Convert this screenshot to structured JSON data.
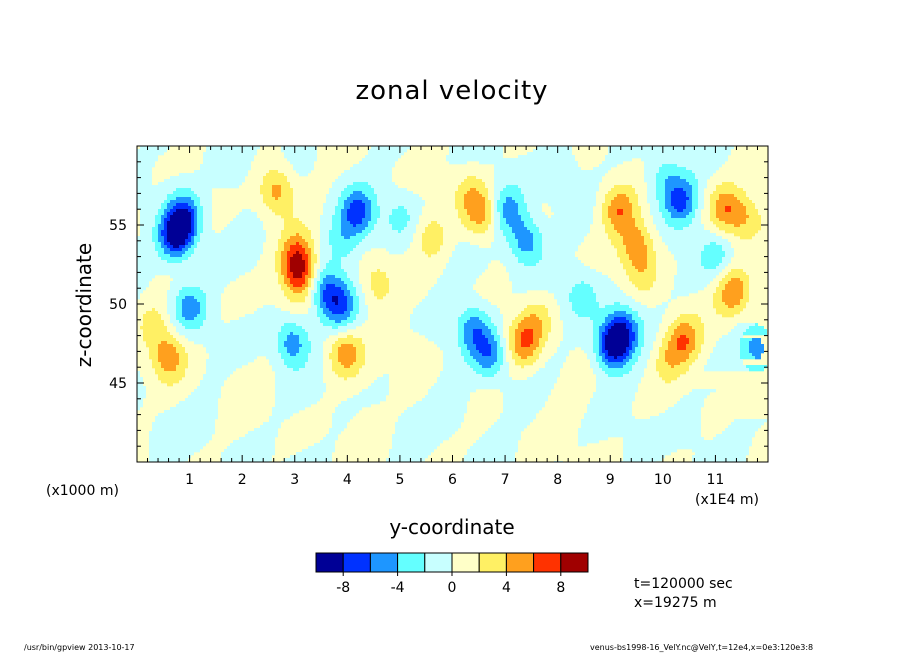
{
  "chart_data": {
    "type": "heatmap",
    "title": "zonal velocity",
    "xlabel": "y-coordinate",
    "ylabel": "z-coordinate",
    "x_unit_left": "(x1000 m)",
    "x_unit_right": "(x1E4 m)",
    "xlim": [
      0,
      12
    ],
    "ylim": [
      40,
      60
    ],
    "x_tick_labels": [
      "1",
      "2",
      "3",
      "4",
      "5",
      "6",
      "7",
      "8",
      "9",
      "10",
      "11"
    ],
    "x_ticks": [
      1,
      2,
      3,
      4,
      5,
      6,
      7,
      8,
      9,
      10,
      11
    ],
    "y_tick_labels": [
      "45",
      "50",
      "55"
    ],
    "y_ticks": [
      45,
      50,
      55
    ],
    "colorbar": {
      "colors": [
        "#000096",
        "#0032ff",
        "#1e96ff",
        "#64ffff",
        "#c8ffff",
        "#ffffc8",
        "#fff064",
        "#ffa01e",
        "#ff3200",
        "#a00000"
      ],
      "tick_labels": [
        "-8",
        "-4",
        "0",
        "4",
        "8"
      ],
      "levels": [
        -10,
        -8,
        -6,
        -4,
        -2,
        0,
        2,
        4,
        6,
        8,
        10
      ]
    },
    "features": [
      {
        "y": 0.75,
        "z": 54.3,
        "v": -9
      },
      {
        "y": 0.9,
        "z": 55.6,
        "v": -6
      },
      {
        "y": 1.0,
        "z": 49.8,
        "v": -5
      },
      {
        "y": 0.6,
        "z": 46.7,
        "v": 5
      },
      {
        "y": 0.3,
        "z": 48.8,
        "v": 2.5
      },
      {
        "y": 2.65,
        "z": 57.2,
        "v": 5
      },
      {
        "y": 3.05,
        "z": 52.3,
        "v": 7
      },
      {
        "y": 3.05,
        "z": 53.5,
        "v": 3
      },
      {
        "y": 3.15,
        "z": 51.2,
        "v": 3
      },
      {
        "y": 2.95,
        "z": 47.6,
        "v": -5.5
      },
      {
        "y": 3.55,
        "z": 51.0,
        "v": -5
      },
      {
        "y": 4.2,
        "z": 55.8,
        "v": -6.5
      },
      {
        "y": 3.9,
        "z": 54.0,
        "v": -3
      },
      {
        "y": 3.85,
        "z": 49.9,
        "v": -6
      },
      {
        "y": 3.95,
        "z": 46.9,
        "v": 5
      },
      {
        "y": 4.55,
        "z": 51.3,
        "v": 3
      },
      {
        "y": 5.0,
        "z": 55.5,
        "v": -2.5
      },
      {
        "y": 5.6,
        "z": 54.3,
        "v": 3
      },
      {
        "y": 6.55,
        "z": 55.7,
        "v": 5
      },
      {
        "y": 6.3,
        "z": 57.1,
        "v": 2.5
      },
      {
        "y": 6.4,
        "z": 48.4,
        "v": -5.5
      },
      {
        "y": 6.7,
        "z": 46.8,
        "v": -5
      },
      {
        "y": 7.05,
        "z": 56.0,
        "v": -5
      },
      {
        "y": 7.4,
        "z": 54.0,
        "v": -5.5
      },
      {
        "y": 7.35,
        "z": 47.5,
        "v": 5.5
      },
      {
        "y": 7.6,
        "z": 49.0,
        "v": 3
      },
      {
        "y": 8.45,
        "z": 50.5,
        "v": -3
      },
      {
        "y": 9.05,
        "z": 47.3,
        "v": -9
      },
      {
        "y": 9.25,
        "z": 48.4,
        "v": -6
      },
      {
        "y": 9.15,
        "z": 56.0,
        "v": 5.5
      },
      {
        "y": 9.5,
        "z": 53.8,
        "v": 5
      },
      {
        "y": 9.6,
        "z": 52.0,
        "v": 2.5
      },
      {
        "y": 10.35,
        "z": 56.5,
        "v": -6.5
      },
      {
        "y": 10.0,
        "z": 58.0,
        "v": -3
      },
      {
        "y": 10.4,
        "z": 47.8,
        "v": 5.5
      },
      {
        "y": 10.1,
        "z": 46.5,
        "v": 3
      },
      {
        "y": 11.0,
        "z": 53.0,
        "v": -3
      },
      {
        "y": 11.35,
        "z": 50.8,
        "v": 5.5
      },
      {
        "y": 11.2,
        "z": 56.0,
        "v": 5
      },
      {
        "y": 11.6,
        "z": 55.5,
        "v": 3
      },
      {
        "y": 11.8,
        "z": 47.2,
        "v": -5
      },
      {
        "y": 4.4,
        "z": 42.0,
        "v": 1
      },
      {
        "y": 6.0,
        "z": 43.5,
        "v": -1.5
      },
      {
        "y": 8.2,
        "z": 44.0,
        "v": 1
      },
      {
        "y": 10.5,
        "z": 42.5,
        "v": -1
      },
      {
        "y": 2.0,
        "z": 44.5,
        "v": 1
      },
      {
        "y": 5.3,
        "z": 47.5,
        "v": 1
      },
      {
        "y": 0.5,
        "z": 41.5,
        "v": -1
      },
      {
        "y": 1.8,
        "z": 58.5,
        "v": -1.5
      },
      {
        "y": 8.0,
        "z": 58.2,
        "v": -2
      }
    ]
  },
  "info": {
    "time": "t=120000 sec",
    "position": "x=19275 m"
  },
  "footer": {
    "left": "/usr/bin/gpview  2013-10-17",
    "right": "venus-bs1998-16_VelY.nc@VelY,t=12e4,x=0e3:120e3:8"
  }
}
